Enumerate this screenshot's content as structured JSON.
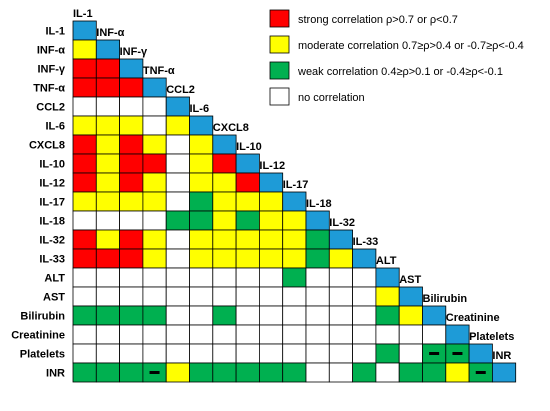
{
  "chart_data": {
    "type": "heatmap",
    "variables": [
      "IL-1",
      "INF-α",
      "INF-γ",
      "TNF-α",
      "CCL2",
      "IL-6",
      "CXCL8",
      "IL-10",
      "IL-12",
      "IL-17",
      "IL-18",
      "IL-32",
      "IL-33",
      "ALT",
      "AST",
      "Bilirubin",
      "Creatinine",
      "Platelets",
      "INR"
    ],
    "legend": [
      {
        "key": "S",
        "color": "#ff0000",
        "label": "strong correlation ρ>0.7 or ρ<0.7"
      },
      {
        "key": "M",
        "color": "#ffff00",
        "label": "moderate correlation 0.7≥ρ>0.4 or -0.7≥ρ<-0.4"
      },
      {
        "key": "W",
        "color": "#00b050",
        "label": "weak correlation 0.4≥ρ>0.1 or -0.4≥ρ<-0.1"
      },
      {
        "key": "N",
        "color": "#ffffff",
        "label": "no correlation"
      }
    ],
    "diagonal_color": "#1e9bd7",
    "negative_marker": "−",
    "rows": [
      "",
      "M",
      "SS",
      "SSS",
      "NNNN",
      "MMMNM",
      "SMSMNM",
      "SMSSNMS",
      "SMSMNMMS",
      "MMMMNWMMM",
      "NNNNWWMWMM",
      "SMSMNMMMMMW",
      "SSSMNMMMMMWM",
      "NNNNNNNNNWNNN",
      "NNNNNNNNNNNNNM",
      "WWWWNNWNNNNNNWM",
      "NNNNNNNNNNNNNNNN",
      "NNNNNNNNNNNNNWNWW",
      "WWWWMWWWWWNNWNWWMW"
    ],
    "negative_cells": [
      {
        "row": "Platelets",
        "col": "Bilirubin"
      },
      {
        "row": "Platelets",
        "col": "Creatinine"
      },
      {
        "row": "INR",
        "col": "TNF-α"
      },
      {
        "row": "INR",
        "col": "Platelets"
      }
    ]
  }
}
